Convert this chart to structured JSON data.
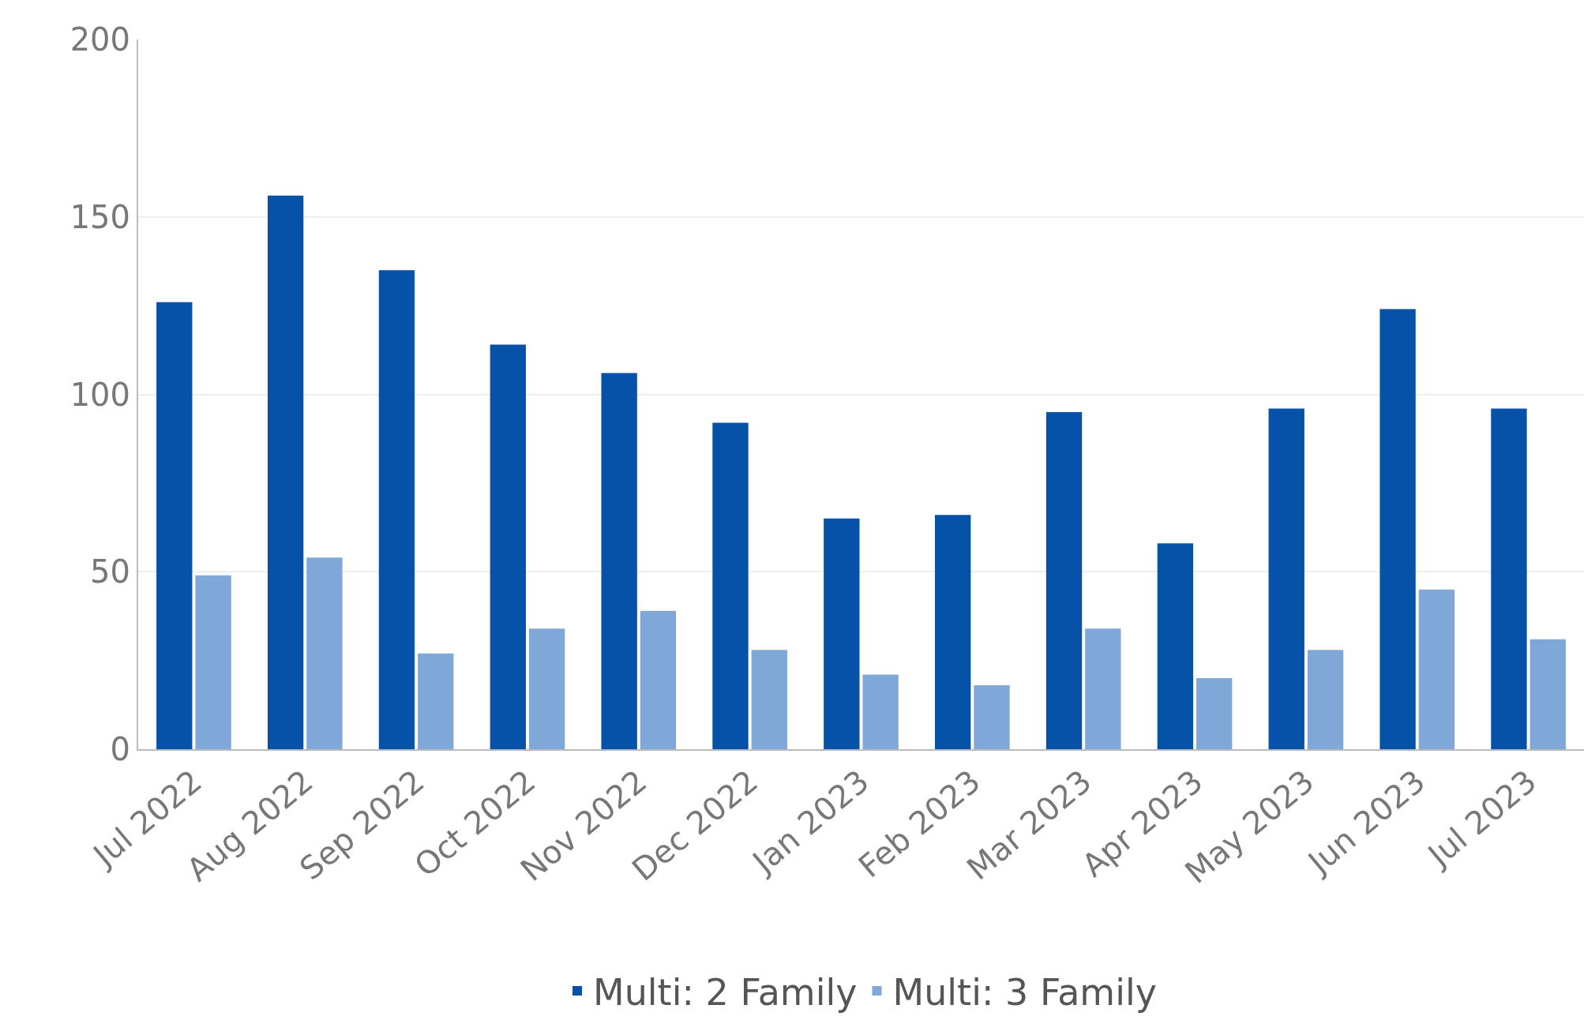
{
  "chart_data": {
    "type": "bar",
    "categories": [
      "Jul 2022",
      "Aug 2022",
      "Sep 2022",
      "Oct 2022",
      "Nov 2022",
      "Dec 2022",
      "Jan 2023",
      "Feb 2023",
      "Mar 2023",
      "Apr 2023",
      "May 2023",
      "Jun 2023",
      "Jul 2023"
    ],
    "series": [
      {
        "name": "Multi: 2 Family",
        "color": "#0652a8",
        "values": [
          126,
          156,
          135,
          114,
          106,
          92,
          65,
          66,
          95,
          58,
          96,
          124,
          96
        ]
      },
      {
        "name": "Multi: 3 Family",
        "color": "#7fa8d8",
        "values": [
          49,
          54,
          27,
          34,
          39,
          28,
          21,
          18,
          34,
          20,
          28,
          45,
          31
        ]
      }
    ],
    "ylim": [
      0,
      200
    ],
    "yticks": [
      0,
      50,
      100,
      150,
      200
    ],
    "grid": "y",
    "legend": "bottom"
  }
}
